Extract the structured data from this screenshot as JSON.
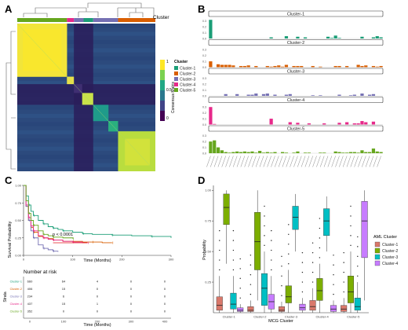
{
  "panels": {
    "a": {
      "letter": "A"
    },
    "b": {
      "letter": "B"
    },
    "c": {
      "letter": "C"
    },
    "d": {
      "letter": "D"
    }
  },
  "heatmap": {
    "cluster_label": "Cluster",
    "colorbar_title": "Consensus Matrix",
    "colorbar_ticks": [
      "1",
      "0.5",
      "0"
    ],
    "legend_title": "Cluster",
    "legend": [
      {
        "name": "Cluster-1",
        "color": "#1b9e77"
      },
      {
        "name": "Cluster-2",
        "color": "#d95f02"
      },
      {
        "name": "Cluster-3",
        "color": "#7570b3"
      },
      {
        "name": "Cluster-4",
        "color": "#e7298a"
      },
      {
        "name": "Cluster-5",
        "color": "#66a61e"
      }
    ]
  },
  "colors": {
    "c1": "#1b9e77",
    "c2": "#d95f02",
    "c3": "#7570b3",
    "c4": "#e7298a",
    "c5": "#66a61e"
  },
  "chart_data": [
    {
      "type": "bar",
      "panel": "B",
      "facets": [
        "Cluster-1",
        "Cluster-2",
        "Cluster-3",
        "Cluster-4",
        "Cluster-5"
      ],
      "ytick_labels": [
        "0.3",
        "0.2",
        "0.1",
        "0.0"
      ],
      "n_categories": 46,
      "series": [
        {
          "name": "Cluster-1",
          "values": [
            0.32,
            0,
            0,
            0,
            0,
            0,
            0,
            0,
            0,
            0,
            0,
            0,
            0,
            0,
            0,
            0,
            0.02,
            0,
            0,
            0,
            0.04,
            0,
            0,
            0.03,
            0,
            0.02,
            0,
            0,
            0,
            0,
            0,
            0.03,
            0.01,
            0.05,
            0.01,
            0,
            0,
            0,
            0,
            0,
            0.03,
            0,
            0,
            0.02,
            0.04,
            0.02
          ]
        },
        {
          "name": "Cluster-2",
          "values": [
            0.1,
            0,
            0.05,
            0.04,
            0.04,
            0.04,
            0.03,
            0,
            0.02,
            0.02,
            0.03,
            0,
            0.02,
            0,
            0,
            0.02,
            0.01,
            0.02,
            0.03,
            0.01,
            0.04,
            0,
            0.02,
            0.02,
            0.02,
            0,
            0,
            0.02,
            0,
            0.01,
            0,
            0,
            0,
            0.02,
            0.02,
            0,
            0.02,
            0,
            0,
            0.04,
            0.02,
            0.03,
            0,
            0.02,
            0.01,
            0.02
          ]
        },
        {
          "name": "Cluster-3",
          "values": [
            0,
            0,
            0,
            0,
            0.03,
            0,
            0,
            0.03,
            0,
            0,
            0.02,
            0.02,
            0.04,
            0,
            0.03,
            0.04,
            0,
            0.02,
            0,
            0,
            0.02,
            0.03,
            0,
            0,
            0,
            0,
            0,
            0.01,
            0,
            0.01,
            0,
            0,
            0,
            0,
            0.02,
            0,
            0,
            0.01,
            0.02,
            0,
            0.04,
            0,
            0.02,
            0.03,
            0,
            0
          ]
        },
        {
          "name": "Cluster-4",
          "values": [
            0.3,
            0.01,
            0,
            0,
            0,
            0,
            0,
            0,
            0,
            0,
            0,
            0,
            0,
            0,
            0,
            0,
            0.1,
            0,
            0,
            0,
            0,
            0.04,
            0,
            0.03,
            0,
            0,
            0.02,
            0,
            0,
            0,
            0.02,
            0,
            0,
            0,
            0.03,
            0,
            0.04,
            0,
            0.02,
            0.02,
            0.06,
            0.04,
            0,
            0.05,
            0,
            0
          ]
        },
        {
          "name": "Cluster-5",
          "values": [
            0.2,
            0.22,
            0.1,
            0.05,
            0.02,
            0.01,
            0.02,
            0.03,
            0.02,
            0.03,
            0.02,
            0.03,
            0.01,
            0.04,
            0.01,
            0.02,
            0.01,
            0.02,
            0,
            0.02,
            0.01,
            0,
            0.01,
            0.03,
            0,
            0.01,
            0.01,
            0,
            0,
            0.01,
            0.01,
            0,
            0,
            0.03,
            0.02,
            0.01,
            0.01,
            0.02,
            0.02,
            0.01,
            0.05,
            0.02,
            0.02,
            0.08,
            0.03,
            0.02
          ]
        }
      ]
    },
    {
      "type": "line",
      "panel": "C",
      "ylabel": "Survival Probability",
      "xlabel": "Time (Months)",
      "xlim": [
        0,
        300
      ],
      "ylim": [
        0,
        1
      ],
      "xticks": [
        0,
        100,
        200,
        300
      ],
      "yticks": [
        0,
        0.25,
        0.5,
        0.75,
        1
      ],
      "ytick_labels": [
        "0.00",
        "0.25",
        "0.50",
        "0.75",
        "1.00"
      ],
      "pvalue": "p < 0.0001",
      "series": [
        {
          "name": "Cluster-1",
          "color": "#1b9e77",
          "x": [
            0,
            5,
            10,
            15,
            20,
            30,
            40,
            50,
            60,
            70,
            80,
            100,
            120,
            140,
            180,
            220,
            260,
            300
          ],
          "y": [
            1,
            0.85,
            0.72,
            0.63,
            0.57,
            0.5,
            0.45,
            0.41,
            0.39,
            0.37,
            0.35,
            0.33,
            0.31,
            0.3,
            0.29,
            0.28,
            0.27,
            0.25
          ]
        },
        {
          "name": "Cluster-2",
          "color": "#d95f02",
          "x": [
            0,
            5,
            10,
            15,
            20,
            30,
            40,
            50,
            60,
            80,
            100,
            120,
            140,
            160,
            180
          ],
          "y": [
            1,
            0.7,
            0.5,
            0.4,
            0.33,
            0.27,
            0.25,
            0.24,
            0.22,
            0.2,
            0.2,
            0.19,
            0.19,
            0.18,
            0.18
          ]
        },
        {
          "name": "Cluster-3",
          "color": "#7570b3",
          "x": [
            0,
            5,
            10,
            15,
            20,
            30,
            40,
            50,
            60,
            70
          ],
          "y": [
            1,
            0.7,
            0.5,
            0.35,
            0.25,
            0.15,
            0.1,
            0.08,
            0.06,
            0.05
          ]
        },
        {
          "name": "Cluster-4",
          "color": "#e7298a",
          "x": [
            0,
            5,
            10,
            15,
            20,
            30,
            40,
            50,
            60,
            80,
            100,
            120,
            130
          ],
          "y": [
            1,
            0.72,
            0.54,
            0.42,
            0.35,
            0.28,
            0.25,
            0.23,
            0.22,
            0.2,
            0.19,
            0.18,
            0.18
          ]
        },
        {
          "name": "Cluster-5",
          "color": "#66a61e",
          "x": [
            0,
            5,
            10,
            15,
            20,
            30,
            40,
            50,
            60,
            80,
            100
          ],
          "y": [
            1,
            0.78,
            0.6,
            0.5,
            0.43,
            0.35,
            0.3,
            0.28,
            0.26,
            0.25,
            0.24
          ]
        }
      ],
      "risk_table": {
        "title": "Number at risk",
        "ylabel": "Strata",
        "xlabel": "Time (Months)",
        "rows": [
          {
            "label": "Cluster-1",
            "color": "#1b9e77",
            "values": [
              "660",
              "64",
              "4",
              "0",
              "0"
            ]
          },
          {
            "label": "Cluster-2",
            "color": "#d95f02",
            "values": [
              "406",
              "15",
              "0",
              "0",
              "0"
            ]
          },
          {
            "label": "Cluster-3",
            "color": "#7570b3",
            "values": [
              "234",
              "6",
              "0",
              "0",
              "0"
            ]
          },
          {
            "label": "Cluster-4",
            "color": "#e7298a",
            "values": [
              "437",
              "15",
              "1",
              "0",
              "0"
            ]
          },
          {
            "label": "Cluster-5",
            "color": "#66a61e",
            "values": [
              "352",
              "0",
              "0",
              "0",
              "0"
            ]
          }
        ],
        "times": [
          "0",
          "100",
          "200",
          "300",
          "400"
        ]
      }
    },
    {
      "type": "box",
      "panel": "D",
      "ylabel": "Probability",
      "xlabel": "MCG Cluster",
      "ylim": [
        0,
        1
      ],
      "yticks": [
        0.25,
        0.5,
        0.75,
        1
      ],
      "ytick_labels": [
        "0.25",
        "0.50",
        "0.75",
        "1.00"
      ],
      "categories": [
        "Cluster-1",
        "Cluster-2",
        "Cluster-3",
        "Cluster-4",
        "Cluster-5"
      ],
      "legend_title": "AML Cluster",
      "series": [
        {
          "name": "Cluster-1",
          "color": "#d9786b",
          "stats": [
            [
              0,
              0.02,
              0.06,
              0.13,
              0.3
            ],
            [
              0,
              0.01,
              0.02,
              0.05,
              0.1
            ],
            [
              0,
              0.01,
              0.02,
              0.05,
              0.09
            ],
            [
              0,
              0.02,
              0.05,
              0.1,
              0.2
            ],
            [
              0,
              0.01,
              0.03,
              0.06,
              0.12
            ]
          ]
        },
        {
          "name": "Cluster-2",
          "color": "#7cae00",
          "stats": [
            [
              0.4,
              0.72,
              0.86,
              0.97,
              1
            ],
            [
              0.1,
              0.35,
              0.58,
              0.82,
              1
            ],
            [
              0,
              0.08,
              0.13,
              0.22,
              0.35
            ],
            [
              0,
              0.1,
              0.18,
              0.28,
              0.4
            ],
            [
              0,
              0.08,
              0.17,
              0.3,
              0.5
            ]
          ]
        },
        {
          "name": "Cluster-3",
          "color": "#00bfc4",
          "stats": [
            [
              0,
              0.03,
              0.07,
              0.16,
              0.3
            ],
            [
              0,
              0.06,
              0.2,
              0.32,
              0.5
            ],
            [
              0.5,
              0.68,
              0.78,
              0.87,
              0.97
            ],
            [
              0.5,
              0.63,
              0.75,
              0.85,
              0.95
            ],
            [
              0,
              0.02,
              0.05,
              0.12,
              0.25
            ]
          ]
        },
        {
          "name": "Cluster-4",
          "color": "#c77cff",
          "stats": [
            [
              0,
              0.01,
              0.02,
              0.04,
              0.07
            ],
            [
              0,
              0.03,
              0.09,
              0.15,
              0.3
            ],
            [
              0,
              0.02,
              0.04,
              0.07,
              0.12
            ],
            [
              0,
              0.01,
              0.03,
              0.06,
              0.1
            ],
            [
              0.1,
              0.45,
              0.75,
              0.91,
              1
            ]
          ]
        }
      ]
    }
  ]
}
